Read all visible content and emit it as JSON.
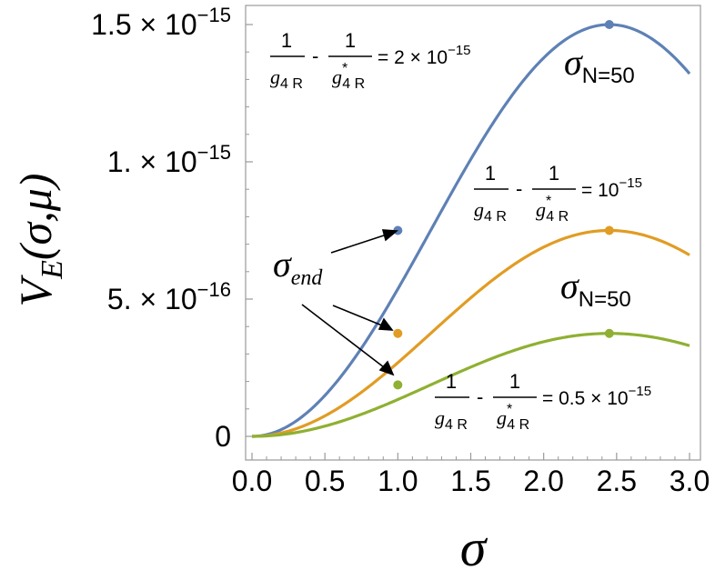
{
  "chart_data": {
    "type": "line",
    "xlabel": "σ",
    "ylabel": {
      "main": "V",
      "sub": "E",
      "args": "(σ,μ)"
    },
    "xlim": [
      0,
      3.0
    ],
    "ylim": [
      0,
      1.5e-15
    ],
    "x_ticks": [
      "0.0",
      "0.5",
      "1.0",
      "1.5",
      "2.0",
      "2.5",
      "3.0"
    ],
    "y_ticks": [
      {
        "value": 0,
        "mant": "0",
        "exp": ""
      },
      {
        "value": 5e-16,
        "mant": "5. × 10",
        "exp": "−16"
      },
      {
        "value": 1e-15,
        "mant": "1. × 10",
        "exp": "−15"
      },
      {
        "value": 1.5e-15,
        "mant": "1.5 × 10",
        "exp": "−15"
      }
    ],
    "grid": false,
    "series": [
      {
        "color": "#5e81b5",
        "amplitude": 1.5e-15,
        "peak_x": 2.45
      },
      {
        "color": "#e19c24",
        "amplitude": 7.5e-16,
        "peak_x": 2.45
      },
      {
        "color": "#8fb032",
        "amplitude": 3.75e-16,
        "peak_x": 2.45
      }
    ],
    "markers_end": [
      {
        "x": 1.0,
        "y": 7.5e-16,
        "color": "#5e81b5"
      },
      {
        "x": 1.0,
        "y": 3.75e-16,
        "color": "#e19c24"
      },
      {
        "x": 1.0,
        "y": 1.875e-16,
        "color": "#8fb032"
      }
    ],
    "markers_peak": [
      {
        "x": 2.45,
        "y": 1.5e-15,
        "color": "#5e81b5"
      },
      {
        "x": 2.45,
        "y": 7.5e-16,
        "color": "#e19c24"
      },
      {
        "x": 2.45,
        "y": 3.75e-16,
        "color": "#8fb032"
      }
    ],
    "annotations": {
      "sigma_end": {
        "main": "σ",
        "sub": "end"
      },
      "sigma_N_top": {
        "main": "σ",
        "sub": "N=50"
      },
      "sigma_N_mid": {
        "main": "σ",
        "sub": "N=50"
      },
      "frac1": {
        "num": "1",
        "den1": "g",
        "den1_sub": "4 R",
        "den2": "g",
        "den2_sup": "*",
        "den2_sub": "4 R",
        "minus": "-",
        "rhs": "= 2 × 10",
        "rhs_exp": "−15"
      },
      "frac2": {
        "num": "1",
        "den1": "g",
        "den1_sub": "4 R",
        "den2": "g",
        "den2_sup": "*",
        "den2_sub": "4 R",
        "minus": "-",
        "rhs": "= 10",
        "rhs_exp": "−15"
      },
      "frac3": {
        "num": "1",
        "den1": "g",
        "den1_sub": "4 R",
        "den2": "g",
        "den2_sup": "*",
        "den2_sub": "4 R",
        "minus": "-",
        "rhs": "= 0.5 × 10",
        "rhs_exp": "−15"
      }
    }
  }
}
